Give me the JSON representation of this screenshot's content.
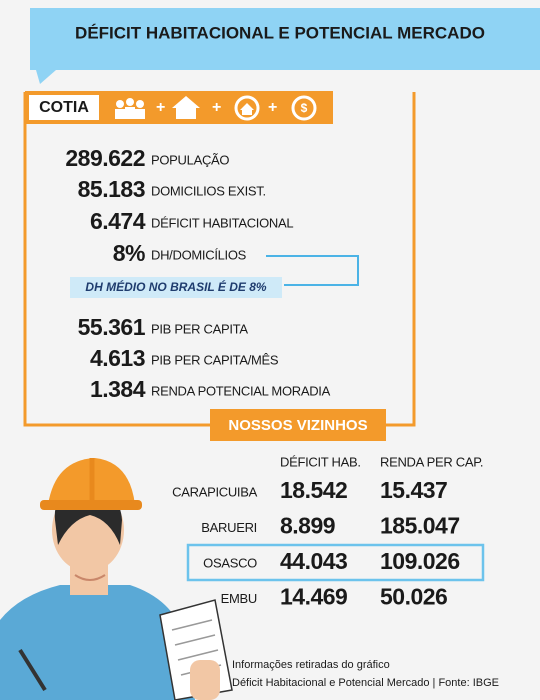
{
  "header": {
    "title": "DÉFICIT HABITACIONAL E POTENCIAL MERCADO"
  },
  "city": "COTIA",
  "stats": [
    {
      "value": "289.622",
      "label": "POPULAÇÃO"
    },
    {
      "value": "85.183",
      "label": "DOMICILIOS EXIST."
    },
    {
      "value": "6.474",
      "label": "DÉFICIT HABITACIONAL"
    },
    {
      "value": "8%",
      "label": "DH/DOMICÍLIOS"
    }
  ],
  "note": "DH MÉDIO NO BRASIL É DE 8%",
  "stats2": [
    {
      "value": "55.361",
      "label": "PIB PER CAPITA"
    },
    {
      "value": "4.613",
      "label": "PIB PER CAPITA/MÊS"
    },
    {
      "value": "1.384",
      "label": "RENDA POTENCIAL MORADIA"
    }
  ],
  "neighbors": {
    "title": "NOSSOS VIZINHOS",
    "columns": [
      "DÉFICIT HAB.",
      "RENDA PER CAP."
    ],
    "rows": [
      [
        "CARAPICUIBA",
        "18.542",
        "15.437"
      ],
      [
        "BARUERI",
        "8.899",
        "185.047"
      ],
      [
        "OSASCO",
        "44.043",
        "109.026"
      ],
      [
        "EMBU",
        "14.469",
        "50.026"
      ]
    ]
  },
  "footer": [
    "Informações retiradas do gráfico",
    "Déficit Habitacional e Potencial Mercado | Fonte: IBGE"
  ]
}
